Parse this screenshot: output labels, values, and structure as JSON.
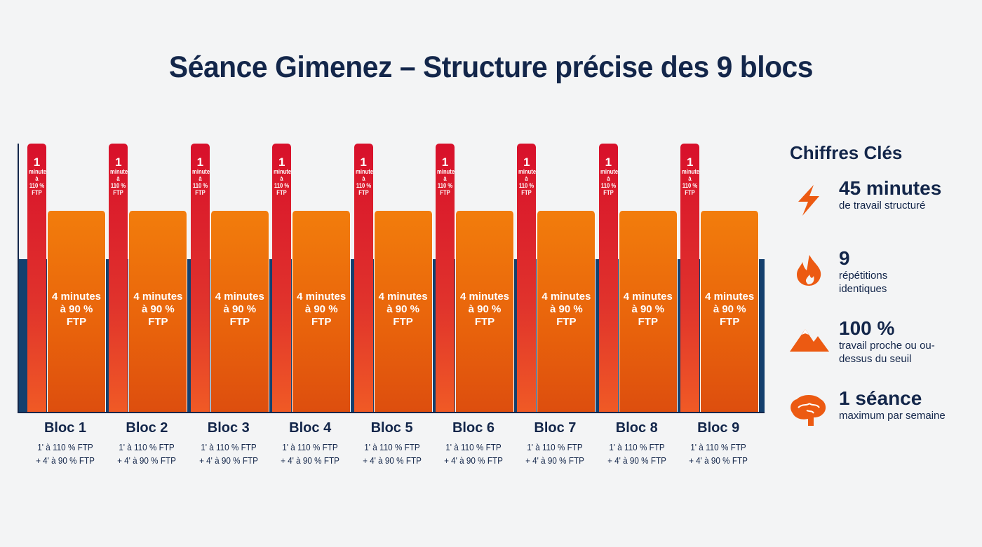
{
  "title": "Séance Gimenez – Structure précise des 9 blocs",
  "chart_data": {
    "type": "bar",
    "categories": [
      "Bloc 1",
      "Bloc 2",
      "Bloc 3",
      "Bloc 4",
      "Bloc 5",
      "Bloc 6",
      "Bloc 7",
      "Bloc 8",
      "Bloc 9"
    ],
    "series": [
      {
        "intensity_pct_ftp": 110,
        "duration_min": 1,
        "color": "#d8102b",
        "label": [
          "1",
          "minute",
          "à",
          "110 %",
          "FTP"
        ]
      },
      {
        "intensity_pct_ftp": 90,
        "duration_min": 4,
        "color": "#f27d0c",
        "label": [
          "4 minutes",
          "à 90 %",
          "FTP"
        ]
      }
    ],
    "block_desc": [
      "1' à 110 % FTP",
      "+ 4' à 90 % FTP"
    ],
    "band_color": "#14406e"
  },
  "sidebar": {
    "title": "Chiffres Clés",
    "items": [
      {
        "icon": "lightning-icon",
        "value": "45 minutes",
        "label": "de travail structuré"
      },
      {
        "icon": "flame-icon",
        "value": "9",
        "label": "répétitions identiques"
      },
      {
        "icon": "mountain-icon",
        "value": "100 %",
        "label": "travail proche ou ou-dessus du seuil"
      },
      {
        "icon": "brain-icon",
        "value": "1 séance",
        "label": "maximum par semaine"
      }
    ],
    "accent": "#ec5a12"
  }
}
